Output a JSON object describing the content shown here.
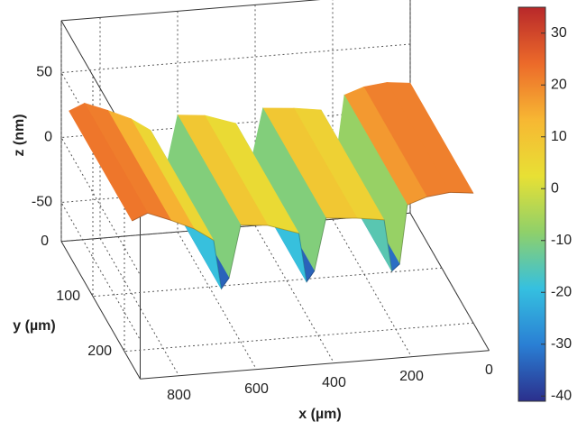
{
  "chart_data": {
    "type": "surface3d",
    "x_label": "x (µm)",
    "y_label": "y (µm)",
    "z_label": "z (nm)",
    "x": [
      0,
      60,
      120,
      170,
      190,
      210,
      230,
      300,
      380,
      410,
      430,
      450,
      530,
      600,
      630,
      650,
      670,
      720,
      780,
      840,
      880
    ],
    "z": [
      20,
      22,
      20,
      15,
      -30,
      -35,
      5,
      8,
      10,
      -30,
      -38,
      0,
      8,
      10,
      -30,
      -38,
      0,
      10,
      18,
      25,
      20
    ],
    "xlim": [
      0,
      900
    ],
    "ylim": [
      0,
      250
    ],
    "zlim": [
      -80,
      90
    ],
    "xticks": [
      800,
      600,
      400,
      200,
      0
    ],
    "yticks": [
      0,
      100,
      200
    ],
    "zticks": [
      -50,
      0,
      50
    ],
    "surface_y": [
      0,
      200
    ],
    "clim": [
      -41,
      35
    ],
    "cticks": [
      30,
      20,
      10,
      0,
      -10,
      -20,
      -30,
      -40
    ],
    "colormap": [
      "#2b2f8c",
      "#2a7fd4",
      "#35c0e0",
      "#8fd06a",
      "#e8e034",
      "#f7b733",
      "#ec6a2a",
      "#b8282a"
    ],
    "grid": true
  }
}
